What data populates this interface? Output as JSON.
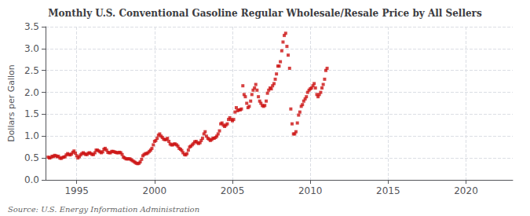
{
  "chart_data": {
    "type": "scatter",
    "title": "Monthly U.S. Conventional Gasoline Regular Wholesale/Resale Price by All Sellers",
    "ylabel": "Dollars per Gallon",
    "annotations": [
      "Source: U.S. Energy Information Administration"
    ],
    "color": "#CC1111",
    "marker": "square",
    "grid": true,
    "xlim": [
      1993.0,
      2023.0
    ],
    "xticks": [
      1995,
      2000,
      2005,
      2010,
      2015,
      2020
    ],
    "ylim": [
      0.0,
      3.5
    ],
    "yticks": [
      {
        "value": 0.0,
        "label": "0.0"
      },
      0.5,
      {
        "value": 1.0,
        "label": "1.0"
      },
      1.5,
      {
        "value": 2.0,
        "label": "2.0"
      },
      2.5,
      {
        "value": 3.0,
        "label": "3.0"
      },
      3.5
    ],
    "x": [
      1993.17,
      1993.25,
      1993.33,
      1993.42,
      1993.5,
      1993.58,
      1993.67,
      1993.75,
      1993.83,
      1993.92,
      1994.0,
      1994.08,
      1994.17,
      1994.25,
      1994.33,
      1994.42,
      1994.5,
      1994.58,
      1994.67,
      1994.75,
      1994.83,
      1994.92,
      1995.0,
      1995.08,
      1995.17,
      1995.25,
      1995.33,
      1995.42,
      1995.5,
      1995.58,
      1995.67,
      1995.75,
      1995.83,
      1995.92,
      1996.0,
      1996.08,
      1996.17,
      1996.25,
      1996.33,
      1996.42,
      1996.5,
      1996.58,
      1996.67,
      1996.75,
      1996.83,
      1996.92,
      1997.0,
      1997.08,
      1997.17,
      1997.25,
      1997.33,
      1997.42,
      1997.5,
      1997.58,
      1997.67,
      1997.75,
      1997.83,
      1997.92,
      1998.0,
      1998.08,
      1998.17,
      1998.25,
      1998.33,
      1998.42,
      1998.5,
      1998.58,
      1998.67,
      1998.75,
      1998.83,
      1998.92,
      1999.0,
      1999.08,
      1999.17,
      1999.25,
      1999.33,
      1999.42,
      1999.5,
      1999.58,
      1999.67,
      1999.75,
      1999.83,
      1999.92,
      2000.0,
      2000.08,
      2000.17,
      2000.25,
      2000.33,
      2000.42,
      2000.5,
      2000.58,
      2000.67,
      2000.75,
      2000.83,
      2000.92,
      2001.0,
      2001.08,
      2001.17,
      2001.25,
      2001.33,
      2001.42,
      2001.5,
      2001.58,
      2001.67,
      2001.75,
      2001.83,
      2001.92,
      2002.0,
      2002.08,
      2002.17,
      2002.25,
      2002.33,
      2002.42,
      2002.5,
      2002.58,
      2002.67,
      2002.75,
      2002.83,
      2002.92,
      2003.0,
      2003.08,
      2003.17,
      2003.25,
      2003.33,
      2003.42,
      2003.5,
      2003.58,
      2003.67,
      2003.75,
      2003.83,
      2003.92,
      2004.0,
      2004.08,
      2004.17,
      2004.25,
      2004.33,
      2004.42,
      2004.5,
      2004.58,
      2004.67,
      2004.75,
      2004.83,
      2004.92,
      2005.0,
      2005.08,
      2005.17,
      2005.25,
      2005.33,
      2005.42,
      2005.5,
      2005.58,
      2005.67,
      2005.75,
      2005.83,
      2005.92,
      2006.0,
      2006.08,
      2006.17,
      2006.25,
      2006.33,
      2006.42,
      2006.5,
      2006.58,
      2006.67,
      2006.75,
      2006.83,
      2006.92,
      2007.0,
      2007.08,
      2007.17,
      2007.25,
      2007.33,
      2007.42,
      2007.5,
      2007.58,
      2007.67,
      2007.75,
      2007.83,
      2007.92,
      2008.0,
      2008.08,
      2008.17,
      2008.25,
      2008.33,
      2008.42,
      2008.5,
      2008.58,
      2008.67,
      2008.75,
      2008.83,
      2008.92,
      2009.0,
      2009.08,
      2009.17,
      2009.25,
      2009.33,
      2009.42,
      2009.5,
      2009.58,
      2009.67,
      2009.75,
      2009.83,
      2009.92,
      2010.0,
      2010.08,
      2010.17,
      2010.25,
      2010.33,
      2010.42,
      2010.5,
      2010.58,
      2010.67,
      2010.75,
      2010.83,
      2010.92,
      2011.0,
      2011.08
    ],
    "values": [
      0.52,
      0.5,
      0.51,
      0.54,
      0.53,
      0.56,
      0.55,
      0.53,
      0.54,
      0.5,
      0.49,
      0.51,
      0.52,
      0.53,
      0.57,
      0.6,
      0.58,
      0.57,
      0.59,
      0.63,
      0.66,
      0.61,
      0.55,
      0.5,
      0.53,
      0.57,
      0.6,
      0.62,
      0.6,
      0.58,
      0.58,
      0.61,
      0.62,
      0.6,
      0.58,
      0.58,
      0.62,
      0.68,
      0.68,
      0.66,
      0.64,
      0.62,
      0.64,
      0.7,
      0.72,
      0.68,
      0.63,
      0.62,
      0.62,
      0.65,
      0.65,
      0.64,
      0.63,
      0.62,
      0.62,
      0.63,
      0.62,
      0.58,
      0.52,
      0.5,
      0.48,
      0.48,
      0.48,
      0.48,
      0.46,
      0.44,
      0.42,
      0.4,
      0.38,
      0.37,
      0.38,
      0.41,
      0.47,
      0.55,
      0.58,
      0.6,
      0.6,
      0.62,
      0.65,
      0.68,
      0.72,
      0.8,
      0.88,
      0.9,
      0.95,
      1.02,
      1.05,
      1.0,
      0.97,
      0.93,
      0.92,
      0.92,
      0.95,
      0.88,
      0.82,
      0.8,
      0.8,
      0.82,
      0.82,
      0.8,
      0.77,
      0.72,
      0.7,
      0.67,
      0.62,
      0.58,
      0.57,
      0.6,
      0.68,
      0.75,
      0.77,
      0.8,
      0.83,
      0.87,
      0.88,
      0.85,
      0.83,
      0.85,
      0.9,
      0.95,
      1.05,
      1.1,
      1.0,
      0.95,
      0.93,
      0.9,
      0.92,
      0.95,
      0.95,
      0.97,
      1.0,
      1.05,
      1.12,
      1.28,
      1.3,
      1.25,
      1.22,
      1.25,
      1.28,
      1.38,
      1.42,
      1.38,
      1.35,
      1.38,
      1.55,
      1.65,
      1.58,
      1.6,
      1.6,
      1.62,
      2.15,
      1.95,
      1.9,
      1.75,
      1.65,
      1.68,
      1.8,
      1.95,
      2.05,
      2.1,
      2.18,
      2.05,
      1.9,
      1.8,
      1.75,
      1.7,
      1.68,
      1.7,
      1.8,
      1.98,
      2.05,
      2.1,
      2.08,
      2.15,
      2.2,
      2.3,
      2.42,
      2.6,
      2.6,
      2.7,
      2.95,
      3.15,
      3.3,
      3.35,
      3.05,
      2.85,
      2.55,
      1.62,
      1.28,
      1.05,
      1.05,
      1.1,
      1.3,
      1.48,
      1.55,
      1.68,
      1.72,
      1.8,
      1.85,
      1.9,
      2.0,
      2.05,
      2.08,
      2.1,
      2.15,
      2.2,
      2.1,
      1.95,
      1.9,
      1.95,
      2.0,
      2.1,
      2.18,
      2.3,
      2.5,
      2.55
    ]
  }
}
